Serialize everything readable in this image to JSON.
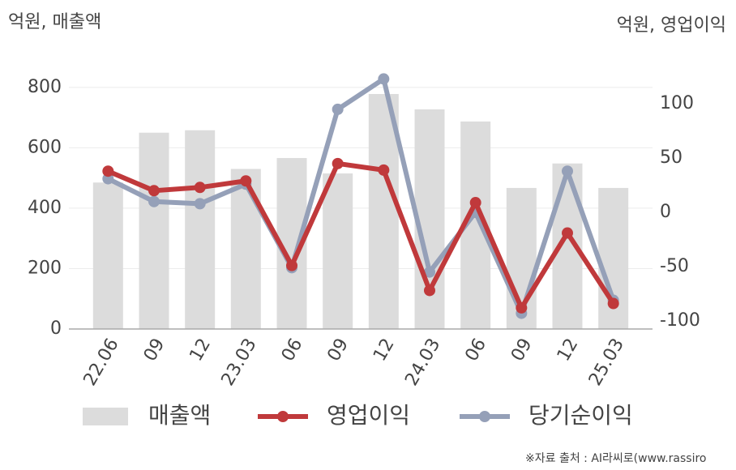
{
  "chart_data": {
    "type": "bar",
    "y_label": "억원, 매출액",
    "y2_label": "억원, 영업이익",
    "source": "※자료 출처 : AI라씨로(www.rassiro",
    "categories": [
      "22.06",
      "09",
      "12",
      "23.03",
      "06",
      "09",
      "12",
      "24.03",
      "06",
      "09",
      "12",
      "25.03"
    ],
    "series": [
      {
        "name": "매출액",
        "type": "bar",
        "axis": "y",
        "color": "#dcdcdc",
        "values": [
          485,
          650,
          658,
          530,
          566,
          515,
          778,
          727,
          687,
          467,
          548,
          467
        ]
      },
      {
        "name": "영업이익",
        "type": "line",
        "axis": "y2",
        "color": "#c0393b",
        "values": [
          38,
          20,
          23,
          29,
          -49,
          45,
          39,
          -72,
          9,
          -88,
          -19,
          -84
        ]
      },
      {
        "name": "당기순이익",
        "type": "line",
        "axis": "y2",
        "color": "#95a0b8",
        "values": [
          31,
          10,
          8,
          26,
          -51,
          95,
          123,
          -55,
          0,
          -93,
          38,
          -81
        ]
      }
    ],
    "ylim": [
      0,
      880
    ],
    "yticks": [
      0,
      200,
      400,
      600,
      800
    ],
    "y2lim": [
      -107.5,
      137.5
    ],
    "y2ticks": [
      -100,
      -50,
      0,
      50,
      100
    ],
    "grid": true
  }
}
